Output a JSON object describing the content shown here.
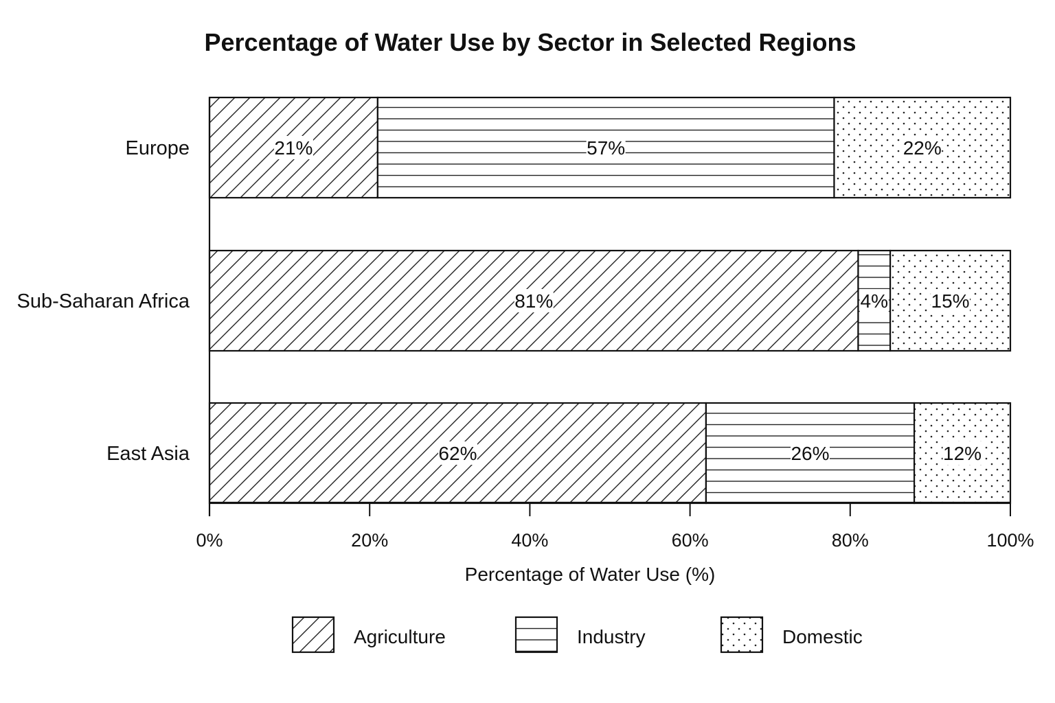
{
  "chart_data": {
    "type": "bar",
    "orientation": "horizontal",
    "stacked": true,
    "title": "Percentage of Water Use by Sector in Selected Regions",
    "xlabel": "Percentage of Water Use (%)",
    "ylabel": "",
    "xlim": [
      0,
      100
    ],
    "x_ticks": [
      "0%",
      "20%",
      "40%",
      "60%",
      "80%",
      "100%"
    ],
    "categories": [
      "Europe",
      "Sub-Saharan Africa",
      "East Asia"
    ],
    "series": [
      {
        "name": "Agriculture",
        "pattern": "diagonal-hatch",
        "values": [
          21,
          81,
          62
        ],
        "labels": [
          "21%",
          "81%",
          "62%"
        ]
      },
      {
        "name": "Industry",
        "pattern": "horizontal-lines",
        "values": [
          57,
          4,
          26
        ],
        "labels": [
          "57%",
          "4%",
          "26%"
        ]
      },
      {
        "name": "Domestic",
        "pattern": "dots",
        "values": [
          22,
          15,
          12
        ],
        "labels": [
          "22%",
          "15%",
          "12%"
        ]
      }
    ],
    "legend_position": "bottom",
    "grid": false,
    "colors": {
      "stroke": "#111111",
      "fill": "#ffffff"
    }
  }
}
